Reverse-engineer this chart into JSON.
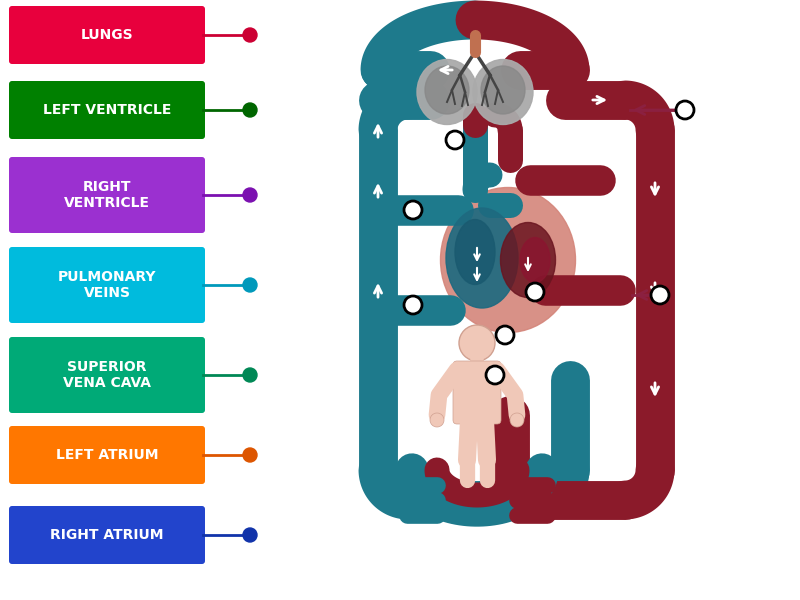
{
  "background_color": "#ffffff",
  "labels": [
    {
      "text": "LUNGS",
      "color": "#e8003d",
      "dot_color": "#cc0033",
      "line_color": "#cc0033"
    },
    {
      "text": "LEFT VENTRICLE",
      "color": "#008000",
      "dot_color": "#006600",
      "line_color": "#006600"
    },
    {
      "text": "RIGHT\nVENTRICLE",
      "color": "#9b30d0",
      "dot_color": "#7b10b0",
      "line_color": "#7b10b0"
    },
    {
      "text": "PULMONARY\nVEINS",
      "color": "#00bbdd",
      "dot_color": "#0099bb",
      "line_color": "#0099bb"
    },
    {
      "text": "SUPERIOR\nVENA CAVA",
      "color": "#00aa77",
      "dot_color": "#008855",
      "line_color": "#008855"
    },
    {
      "text": "LEFT ATRIUM",
      "color": "#ff7700",
      "dot_color": "#dd5500",
      "line_color": "#dd5500"
    },
    {
      "text": "RIGHT ATRIUM",
      "color": "#2244cc",
      "dot_color": "#1133aa",
      "line_color": "#1133aa"
    }
  ],
  "teal": "#1e7a8c",
  "dark_red": "#8b1a2a",
  "heart_bg": "#d4857a",
  "lung_gray": "#888888",
  "body_skin": "#f0c8b8",
  "arrow_maroon": "#8b2040",
  "white": "#ffffff"
}
